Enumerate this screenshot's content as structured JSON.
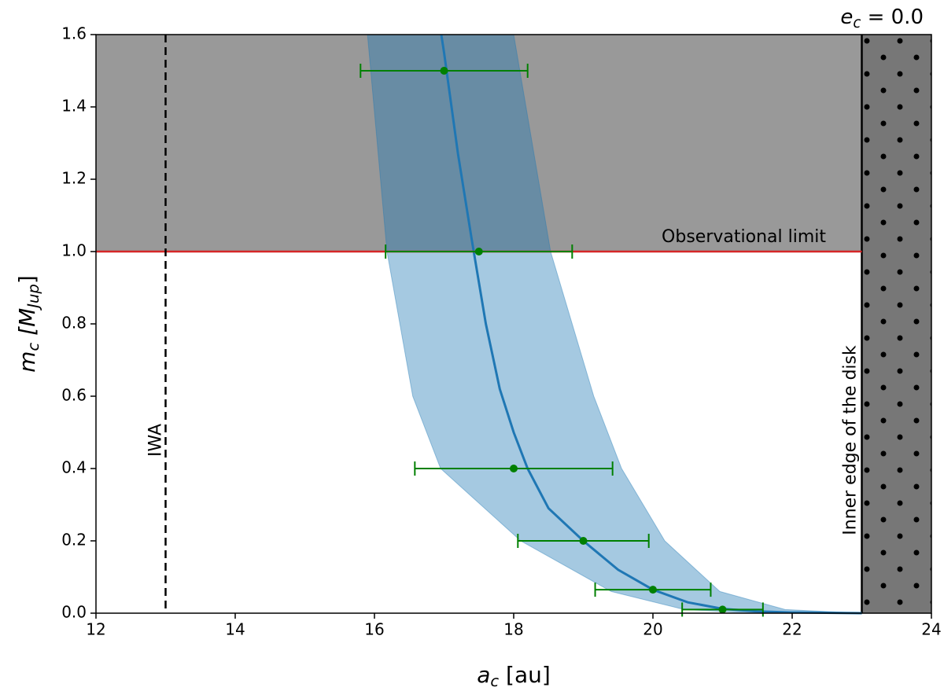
{
  "chart_data": {
    "type": "errorbar",
    "title": [
      "e",
      "c",
      " = 0.0"
    ],
    "xlabel": [
      "a",
      "c",
      " [au]"
    ],
    "ylabel": [
      "m",
      "c",
      " [M",
      "Jup",
      "]"
    ],
    "xlim": [
      12,
      24
    ],
    "ylim": [
      0,
      1.6
    ],
    "xticks": [
      12,
      14,
      16,
      18,
      20,
      22,
      24
    ],
    "yticks": [
      {
        "value": 0,
        "label": "0.0"
      },
      {
        "value": 0.2,
        "label": "0.2"
      },
      {
        "value": 0.4,
        "label": "0.4"
      },
      {
        "value": 0.6,
        "label": "0.6"
      },
      {
        "value": 0.8,
        "label": "0.8"
      },
      {
        "value": 1.0,
        "label": "1.0"
      },
      {
        "value": 1.2,
        "label": "1.2"
      },
      {
        "value": 1.4,
        "label": "1.4"
      },
      {
        "value": 1.6,
        "label": "1.6"
      }
    ],
    "points": {
      "color": "#008000",
      "x": [
        17.0,
        17.5,
        18.0,
        19.0,
        20.0,
        21.0
      ],
      "y": [
        1.5,
        1.0,
        0.4,
        0.2,
        0.065,
        0.01
      ],
      "xerr": [
        1.2,
        1.34,
        1.42,
        0.94,
        0.83,
        0.58
      ]
    },
    "curve": {
      "color": "#1f77b4",
      "x": [
        16.96,
        17.0,
        17.2,
        17.4,
        17.6,
        17.8,
        18.0,
        18.2,
        18.5,
        19.0,
        19.5,
        20.0,
        20.5,
        21.0,
        21.5,
        22.0,
        23.0
      ],
      "y": [
        1.6,
        1.55,
        1.27,
        1.03,
        0.8,
        0.62,
        0.5,
        0.4,
        0.29,
        0.2,
        0.12,
        0.065,
        0.03,
        0.012,
        0.005,
        0.002,
        0
      ]
    },
    "band": {
      "color": "#1f77b4",
      "y": [
        1.6,
        1.0,
        0.6,
        0.4,
        0.2,
        0.06,
        0.01,
        0
      ],
      "x_left": [
        15.9,
        16.18,
        16.55,
        16.95,
        18.1,
        19.4,
        20.45,
        21.5
      ],
      "x_right": [
        18.0,
        18.53,
        19.15,
        19.55,
        20.17,
        20.96,
        21.9,
        23.0
      ]
    },
    "observational_limit": {
      "value": 1.0,
      "label": "Observational limit",
      "color": "#d62728"
    },
    "iwa": {
      "value": 13,
      "label": "IWA"
    },
    "disk_edge": {
      "value": 23,
      "label": "Inner edge of the disk"
    }
  }
}
